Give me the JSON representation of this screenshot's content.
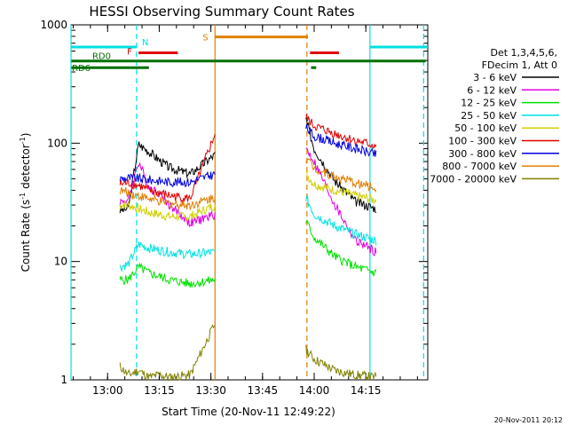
{
  "chart_data": {
    "type": "line",
    "title": "HESSI Observing Summary Count Rates",
    "xlabel": "Start Time (20-Nov-11 12:49:22)",
    "ylabel_prefix": "Count Rate (s",
    "ylabel_exp1": "-1",
    "ylabel_mid": " detector",
    "ylabel_exp2": "-1",
    "ylabel_suffix": ")",
    "yscale": "log",
    "ylim": [
      1,
      1000
    ],
    "xlim": [
      12.8228,
      14.55
    ],
    "x_ticks": [
      {
        "value": 13.0,
        "label": "13:00"
      },
      {
        "value": 13.25,
        "label": "13:15"
      },
      {
        "value": 13.5,
        "label": "13:30"
      },
      {
        "value": 13.75,
        "label": "13:45"
      },
      {
        "value": 14.0,
        "label": "14:00"
      },
      {
        "value": 14.25,
        "label": "14:15"
      }
    ],
    "y_ticks": [
      {
        "value": 1,
        "label": "1"
      },
      {
        "value": 10,
        "label": "10"
      },
      {
        "value": 100,
        "label": "100"
      },
      {
        "value": 1000,
        "label": "1000"
      }
    ],
    "grid": false,
    "legend_position": "right",
    "legend_header": [
      "Det 1,3,4,5,6,",
      "FDecim 1, Att 0"
    ],
    "footer_timestamp": "20-Nov-2011 20:12",
    "series": [
      {
        "name": "3 - 6 keV",
        "color": "#000000",
        "x": [
          13.06,
          13.1,
          13.15,
          13.2,
          13.25,
          13.3,
          13.4,
          13.52,
          13.96,
          14.0,
          14.1,
          14.2,
          14.3
        ],
        "y": [
          27,
          28,
          98,
          85,
          72,
          62,
          55,
          80,
          160,
          90,
          48,
          32,
          28
        ]
      },
      {
        "name": "6 - 12 keV",
        "color": "#e000e0",
        "x": [
          13.06,
          13.1,
          13.15,
          13.2,
          13.25,
          13.3,
          13.4,
          13.52,
          13.96,
          14.0,
          14.1,
          14.2,
          14.3
        ],
        "y": [
          32,
          33,
          70,
          42,
          38,
          30,
          21,
          25,
          90,
          70,
          30,
          15,
          12
        ]
      },
      {
        "name": "12 - 25 keV",
        "color": "#00e000",
        "x": [
          13.06,
          13.1,
          13.15,
          13.2,
          13.25,
          13.3,
          13.4,
          13.52,
          13.96,
          14.0,
          14.1,
          14.2,
          14.3
        ],
        "y": [
          7,
          7,
          9,
          8,
          7.5,
          7,
          6.5,
          7,
          22,
          16,
          11,
          9,
          8
        ]
      },
      {
        "name": "25 - 50 keV",
        "color": "#00e0e0",
        "x": [
          13.06,
          13.1,
          13.15,
          13.2,
          13.25,
          13.3,
          13.4,
          13.52,
          13.96,
          14.0,
          14.1,
          14.2,
          14.3
        ],
        "y": [
          9,
          9.5,
          14,
          13,
          12.5,
          12,
          11.5,
          12,
          35,
          25,
          20,
          17,
          15
        ]
      },
      {
        "name": "50 - 100 keV",
        "color": "#d0d000",
        "x": [
          13.06,
          13.1,
          13.15,
          13.2,
          13.25,
          13.3,
          13.4,
          13.52,
          13.96,
          14.0,
          14.1,
          14.2,
          14.3
        ],
        "y": [
          30,
          30,
          28,
          26,
          25,
          24,
          24,
          30,
          55,
          45,
          40,
          36,
          33
        ]
      },
      {
        "name": "100 - 300 keV",
        "color": "#e00000",
        "x": [
          13.06,
          13.1,
          13.15,
          13.2,
          13.25,
          13.3,
          13.4,
          13.52,
          13.96,
          14.0,
          14.1,
          14.2,
          14.3
        ],
        "y": [
          45,
          46,
          44,
          40,
          38,
          36,
          34,
          120,
          165,
          140,
          120,
          105,
          95
        ]
      },
      {
        "name": "300 - 800 keV",
        "color": "#0000e0",
        "x": [
          13.06,
          13.1,
          13.15,
          13.2,
          13.25,
          13.3,
          13.4,
          13.52,
          13.96,
          14.0,
          14.1,
          14.2,
          14.3
        ],
        "y": [
          50,
          51,
          50,
          49,
          48,
          47,
          47,
          55,
          135,
          115,
          100,
          90,
          80
        ]
      },
      {
        "name": "800 - 7000 keV",
        "color": "#e08000",
        "x": [
          13.06,
          13.1,
          13.15,
          13.2,
          13.25,
          13.3,
          13.4,
          13.52,
          13.96,
          14.0,
          14.1,
          14.2,
          14.3
        ],
        "y": [
          40,
          38,
          36,
          34,
          32,
          31,
          30,
          35,
          75,
          62,
          52,
          46,
          42
        ]
      },
      {
        "name": "7000 - 20000 keV",
        "color": "#808000",
        "x": [
          13.06,
          13.1,
          13.15,
          13.2,
          13.25,
          13.3,
          13.4,
          13.52,
          13.96,
          14.0,
          14.1,
          14.2,
          14.3
        ],
        "y": [
          1.3,
          1.1,
          1.2,
          1.05,
          1.1,
          1.05,
          1.1,
          3,
          1.8,
          1.5,
          1.2,
          1.1,
          1.05
        ]
      }
    ],
    "state_bars": [
      {
        "label": "N",
        "color": "#00e0e0",
        "segments": [
          [
            12.8228,
            13.14
          ],
          [
            14.27,
            14.55
          ]
        ],
        "level": 650
      },
      {
        "label": "S",
        "color": "#e08000",
        "segments": [
          [
            13.52,
            13.97
          ]
        ],
        "level": 790
      },
      {
        "label": "F",
        "color": "#e00000",
        "segments": [
          [
            13.15,
            13.34
          ],
          [
            13.98,
            14.12
          ]
        ],
        "level": 580
      },
      {
        "label": "RD0",
        "color": "#007000",
        "segments": [
          [
            12.825,
            14.54
          ]
        ],
        "level": 495
      },
      {
        "label": "RD6",
        "color": "#007000",
        "segments": [
          [
            12.825,
            13.2
          ],
          [
            13.985,
            14.01
          ]
        ],
        "level": 435
      }
    ],
    "vlines": [
      {
        "x": 12.823,
        "color": "#00e0e0",
        "style": "solid"
      },
      {
        "x": 13.14,
        "color": "#00e0e0",
        "style": "dashed"
      },
      {
        "x": 13.52,
        "color": "#e08000",
        "style": "solid"
      },
      {
        "x": 13.965,
        "color": "#e08000",
        "style": "dashed"
      },
      {
        "x": 14.27,
        "color": "#00e0e0",
        "style": "solid"
      },
      {
        "x": 14.53,
        "color": "#00e0e0",
        "style": "dashed"
      }
    ]
  }
}
